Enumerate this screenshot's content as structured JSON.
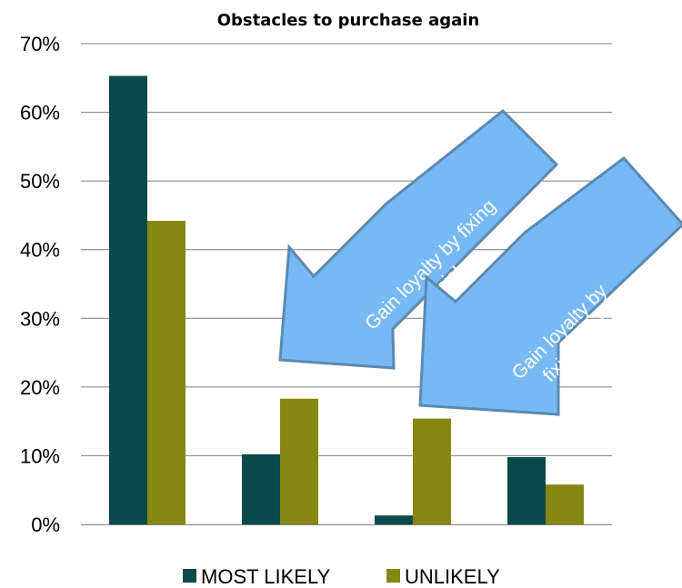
{
  "chart_data": {
    "type": "bar",
    "title": "Obstacles to purchase again",
    "xlabel": "",
    "ylabel": "",
    "ylim": [
      0,
      70
    ],
    "y_ticks": [
      "0%",
      "10%",
      "20%",
      "30%",
      "40%",
      "50%",
      "60%",
      "70%"
    ],
    "categories": [
      "",
      "",
      "",
      ""
    ],
    "series": [
      {
        "name": "MOST LIKELY",
        "color": "#0a4a4a",
        "values": [
          65.3,
          10.2,
          1.3,
          9.8
        ]
      },
      {
        "name": "UNLIKELY",
        "color": "#868713",
        "values": [
          44.2,
          18.3,
          15.4,
          5.8
        ]
      }
    ],
    "grid": true,
    "legend_position": "bottom",
    "annotations": [
      {
        "text_lines": [
          "Gain loyalty by fixing",
          "this!"
        ],
        "color": "#78b9f5"
      },
      {
        "text_lines": [
          "Gain loyalty by",
          "fixing this!"
        ],
        "color": "#78b9f5"
      }
    ]
  }
}
